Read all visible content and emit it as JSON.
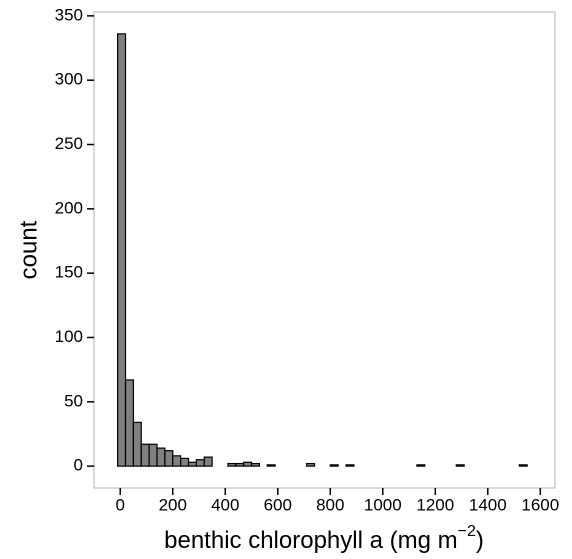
{
  "chart_data": {
    "type": "histogram",
    "x_label": {
      "text": "benthic chlorophyll a (mg m",
      "superscript": "−2",
      "suffix": ")"
    },
    "y_label": "count",
    "bins": [
      -10,
      20,
      50,
      80,
      110,
      140,
      170,
      200,
      230,
      260,
      290,
      320,
      350,
      380,
      410,
      440,
      470,
      500,
      530,
      560,
      590,
      620,
      650,
      680,
      710,
      740,
      770,
      800,
      830,
      860,
      890,
      920,
      950,
      980,
      1010,
      1040,
      1070,
      1100,
      1130,
      1160,
      1190,
      1220,
      1250,
      1280,
      1310,
      1340,
      1370,
      1400,
      1430,
      1460,
      1490,
      1520,
      1550,
      1580
    ],
    "counts": [
      336,
      67,
      34,
      17,
      17,
      14,
      12,
      8,
      6,
      3,
      5,
      7,
      0,
      0,
      2,
      2,
      3,
      2,
      0,
      1,
      0,
      0,
      0,
      0,
      2,
      0,
      0,
      1,
      0,
      1,
      0,
      0,
      0,
      0,
      0,
      0,
      0,
      0,
      1,
      0,
      0,
      0,
      0,
      1,
      0,
      0,
      0,
      0,
      0,
      0,
      0,
      1,
      0
    ],
    "color": "#808080",
    "xlim": [
      -100,
      1656
    ],
    "ylim": [
      -17,
      353
    ],
    "xticks": [
      0,
      200,
      400,
      600,
      800,
      1000,
      1200,
      1400,
      1600
    ],
    "yticks": [
      0,
      50,
      100,
      150,
      200,
      250,
      300,
      350
    ],
    "grid": false
  }
}
